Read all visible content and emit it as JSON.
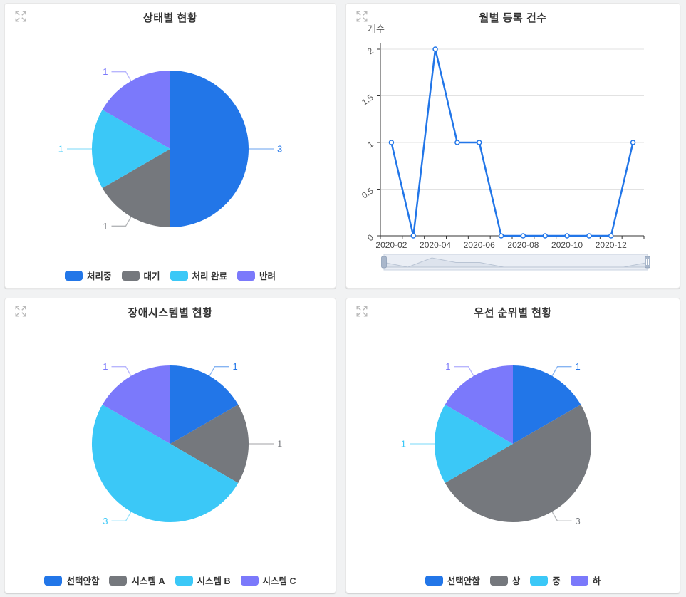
{
  "theme": {
    "page_background": "#f1f2f3",
    "card_background": "#ffffff",
    "palette": {
      "blue": "#2276e8",
      "gray": "#75787d",
      "cyan": "#3bc8f7",
      "purple": "#7b79fb"
    },
    "axis_color": "#333333",
    "gridline_color": "#e2e2e2",
    "title_color": "#333333"
  },
  "ui": {
    "expand_icon": "fullscreen-expand-icon"
  },
  "chart_data": [
    {
      "type": "pie",
      "title": "상태별 현황",
      "labels": [
        "처리중",
        "대기",
        "처리 완료",
        "반려"
      ],
      "values": [
        3,
        1,
        1,
        1
      ],
      "colors": [
        "#2276e8",
        "#75787d",
        "#3bc8f7",
        "#7b79fb"
      ],
      "legend_position": "bottom",
      "label_format": "value",
      "start_angle_deg": 0,
      "direction": "clockwise"
    },
    {
      "type": "line",
      "title": "월별 등록 건수",
      "ylabel": "개수",
      "x": [
        "2020-02",
        "2020-03",
        "2020-04",
        "2020-05",
        "2020-06",
        "2020-07",
        "2020-08",
        "2020-09",
        "2020-10",
        "2020-11",
        "2020-12",
        "2021-01"
      ],
      "values": [
        1,
        0,
        2,
        1,
        1,
        0,
        0,
        0,
        0,
        0,
        0,
        1
      ],
      "yticks": [
        0,
        0.5,
        1,
        1.5,
        2
      ],
      "ylim": [
        0,
        2
      ],
      "x_label_interval": 2,
      "line_color": "#2276e8",
      "marker": "open-circle",
      "grid": true,
      "datazoom_slider": true
    },
    {
      "type": "pie",
      "title": "장애시스템별 현황",
      "labels": [
        "선택안함",
        "시스템 A",
        "시스템 B",
        "시스템 C"
      ],
      "values": [
        1,
        1,
        3,
        1
      ],
      "colors": [
        "#2276e8",
        "#75787d",
        "#3bc8f7",
        "#7b79fb"
      ],
      "legend_position": "bottom",
      "label_format": "value",
      "start_angle_deg": 0,
      "direction": "clockwise"
    },
    {
      "type": "pie",
      "title": "우선 순위별 현황",
      "labels": [
        "선택안함",
        "상",
        "중",
        "하"
      ],
      "values": [
        1,
        3,
        1,
        1
      ],
      "colors": [
        "#2276e8",
        "#75787d",
        "#3bc8f7",
        "#7b79fb"
      ],
      "legend_position": "bottom",
      "label_format": "value",
      "start_angle_deg": 0,
      "direction": "clockwise"
    }
  ]
}
